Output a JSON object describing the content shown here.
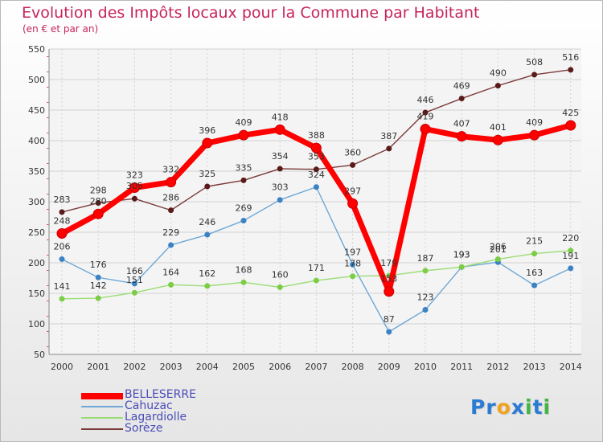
{
  "chart_data": {
    "type": "line",
    "title": "Evolution des Impôts locaux pour la Commune par Habitant",
    "subtitle": "(en € et par an)",
    "xlabel": "",
    "ylabel": "",
    "categories": [
      "2000",
      "2001",
      "2002",
      "2003",
      "2004",
      "2005",
      "2006",
      "2007",
      "2008",
      "2009",
      "2010",
      "2011",
      "2012",
      "2013",
      "2014"
    ],
    "ylim": [
      50,
      550
    ],
    "yticks": [
      50,
      100,
      150,
      200,
      250,
      300,
      350,
      400,
      450,
      500,
      550
    ],
    "grid": true,
    "legend_position": "bottom-left",
    "series": [
      {
        "name": "BELLESERRE",
        "color": "#ff0000",
        "point_color": "#8b0000",
        "values": [
          248,
          280,
          323,
          332,
          396,
          409,
          418,
          388,
          297,
          153,
          419,
          407,
          401,
          409,
          425
        ],
        "labels": [
          "248",
          "280",
          "323",
          "332",
          "396",
          "409",
          "418",
          "388",
          "297",
          "153",
          "419",
          "407",
          "401",
          "409",
          "425"
        ]
      },
      {
        "name": "Cahuzac",
        "color": "#6fa8d6",
        "point_color": "#3b82c4",
        "values": [
          206,
          176,
          166,
          229,
          246,
          269,
          303,
          324,
          197,
          87,
          123,
          193,
          201,
          163,
          191
        ],
        "labels": [
          "206",
          "176",
          "166",
          "229",
          "246",
          "269",
          "303",
          "324",
          "197",
          "87",
          "123",
          "193",
          "201",
          "163",
          "191"
        ]
      },
      {
        "name": "Lagardiolle",
        "color": "#9bdc74",
        "point_color": "#7ccd46",
        "values": [
          141,
          142,
          151,
          164,
          162,
          168,
          160,
          171,
          178,
          179,
          187,
          193,
          206,
          215,
          220
        ],
        "labels": [
          "141",
          "142",
          "151",
          "164",
          "162",
          "168",
          "160",
          "171",
          "178",
          "179",
          "187",
          "193",
          "206",
          "215",
          "220"
        ]
      },
      {
        "name": "Sorèze",
        "color": "#7a3b3b",
        "point_color": "#5a1a1a",
        "values": [
          283,
          298,
          305,
          286,
          325,
          335,
          354,
          353,
          360,
          387,
          446,
          469,
          490,
          508,
          516
        ],
        "labels": [
          "283",
          "298",
          "305",
          "286",
          "325",
          "335",
          "354",
          "353",
          "360",
          "387",
          "446",
          "469",
          "490",
          "508",
          "516"
        ]
      }
    ]
  },
  "logo": {
    "text": "Proxiti",
    "letters": [
      "P",
      "r",
      "o",
      "x",
      "i",
      "t",
      "i"
    ],
    "colors": [
      "#2a7bd4",
      "#2a7bd4",
      "#f2a11d",
      "#2a7bd4",
      "#44b545",
      "#2a7bd4",
      "#44b545"
    ]
  }
}
